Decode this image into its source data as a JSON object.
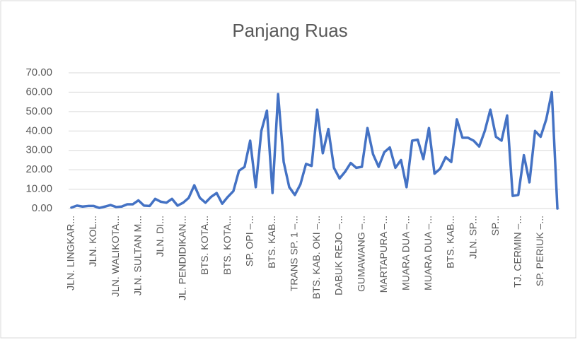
{
  "chart_data": {
    "type": "line",
    "title": "Panjang Ruas",
    "categories": [
      "JLN. LINGKAR...",
      null,
      null,
      null,
      "JLN. KOL...",
      null,
      null,
      null,
      "JLN. WALIKOTA...",
      null,
      null,
      null,
      "JLN. SULTAN M...",
      null,
      null,
      null,
      "JLN. DI...",
      null,
      null,
      null,
      "JL. PENDIDIKAN...",
      null,
      null,
      null,
      "BTS. KOTA...",
      null,
      null,
      null,
      "BTS. KOTA...",
      null,
      null,
      null,
      "SP. OPI –...",
      null,
      null,
      null,
      "BTS. KAB...",
      null,
      null,
      null,
      "TRANS SP. 1 –...",
      null,
      null,
      null,
      "BTS. KAB. OKI –...",
      null,
      null,
      null,
      "DABUK REJO –...",
      null,
      null,
      null,
      "GUMAWANG –...",
      null,
      null,
      null,
      "MARTAPURA –...",
      null,
      null,
      null,
      "MUARA DUA –...",
      null,
      null,
      null,
      "MUARA DUA –...",
      null,
      null,
      null,
      "BTS. KAB...",
      null,
      null,
      null,
      "JLN. SP...",
      null,
      null,
      null,
      "SP...",
      null,
      null,
      null,
      "TJ. CERMIN –...",
      null,
      null,
      null,
      "SP. PERIUK –...",
      null,
      null,
      null
    ],
    "series": [
      {
        "name": "Panjang Ruas",
        "color": "#4472c4",
        "values": [
          0.5,
          1.5,
          1,
          1.3,
          1.3,
          0.3,
          1,
          1.8,
          0.8,
          1,
          2.2,
          2.2,
          4.2,
          1.5,
          1.3,
          5,
          3.5,
          3,
          5,
          1.5,
          3,
          5.5,
          12,
          5.5,
          3,
          6,
          8,
          2.5,
          6,
          9,
          19.5,
          21.5,
          35,
          11,
          40,
          50.5,
          8,
          59,
          24,
          11,
          7,
          12.5,
          23,
          22,
          51,
          28.5,
          41,
          21,
          15.5,
          19,
          23.5,
          21,
          21.5,
          41.5,
          28,
          21.5,
          29,
          31.5,
          21,
          25,
          11,
          35,
          35.5,
          25.5,
          41.5,
          18,
          20.5,
          26.5,
          24,
          46,
          36.5,
          36.5,
          35,
          32,
          40,
          51,
          37,
          35,
          48,
          6.5,
          7,
          27.5,
          13.5,
          40,
          37,
          46,
          60,
          0
        ]
      }
    ],
    "ylim": [
      0,
      70
    ],
    "yticks": [
      {
        "value": 0,
        "label": "0.00"
      },
      {
        "value": 10,
        "label": "10.00"
      },
      {
        "value": 20,
        "label": "20.00"
      },
      {
        "value": 30,
        "label": "30.00"
      },
      {
        "value": 40,
        "label": "40.00"
      },
      {
        "value": 50,
        "label": "50.00"
      },
      {
        "value": 60,
        "label": "60.00"
      },
      {
        "value": 70,
        "label": "70.00"
      }
    ],
    "grid": true
  }
}
